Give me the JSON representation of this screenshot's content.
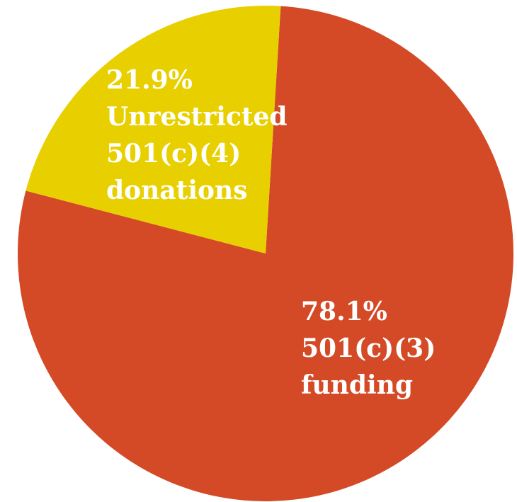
{
  "chart_data": {
    "type": "pie",
    "title": "",
    "slices": [
      {
        "value": 78.1,
        "percent_label": "78.1%",
        "label_lines": [
          "501(c)(3)",
          "funding"
        ],
        "color": "#d44a27"
      },
      {
        "value": 21.9,
        "percent_label": "21.9%",
        "label_lines": [
          "Unrestricted",
          "501(c)(4)",
          "donations"
        ],
        "color": "#e8d000"
      }
    ],
    "legend": "none"
  }
}
